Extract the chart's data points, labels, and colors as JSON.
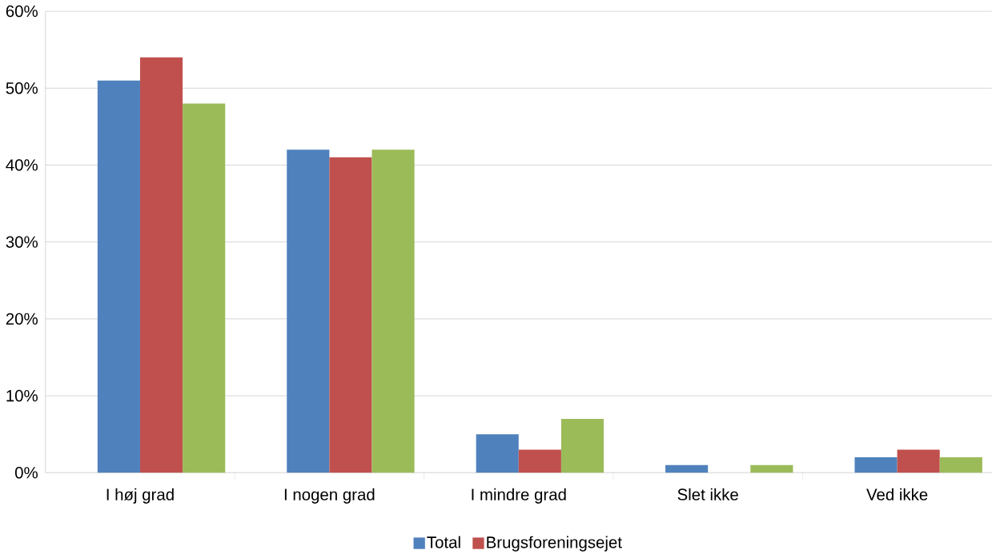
{
  "chart_data": {
    "type": "bar",
    "categories": [
      "I høj grad",
      "I nogen grad",
      "I mindre grad",
      "Slet ikke",
      "Ved ikke"
    ],
    "series": [
      {
        "name": "Total",
        "color": "#4f81bd",
        "values": [
          51,
          42,
          5,
          1,
          2
        ]
      },
      {
        "name": "Brugsforeningsejet",
        "color": "#c0504d",
        "values": [
          54,
          41,
          3,
          0,
          3
        ]
      },
      {
        "color": "#9bbb59",
        "values": [
          48,
          42,
          7,
          1,
          2
        ]
      }
    ],
    "ylim": [
      0,
      60
    ],
    "yticks": [
      {
        "value": 0,
        "label": "0%"
      },
      {
        "value": 10,
        "label": "10%"
      },
      {
        "value": 20,
        "label": "20%"
      },
      {
        "value": 30,
        "label": "30%"
      },
      {
        "value": 40,
        "label": "40%"
      },
      {
        "value": 50,
        "label": "50%"
      },
      {
        "value": 60,
        "label": "60%"
      }
    ],
    "grid": "y",
    "legend": "bottom"
  }
}
